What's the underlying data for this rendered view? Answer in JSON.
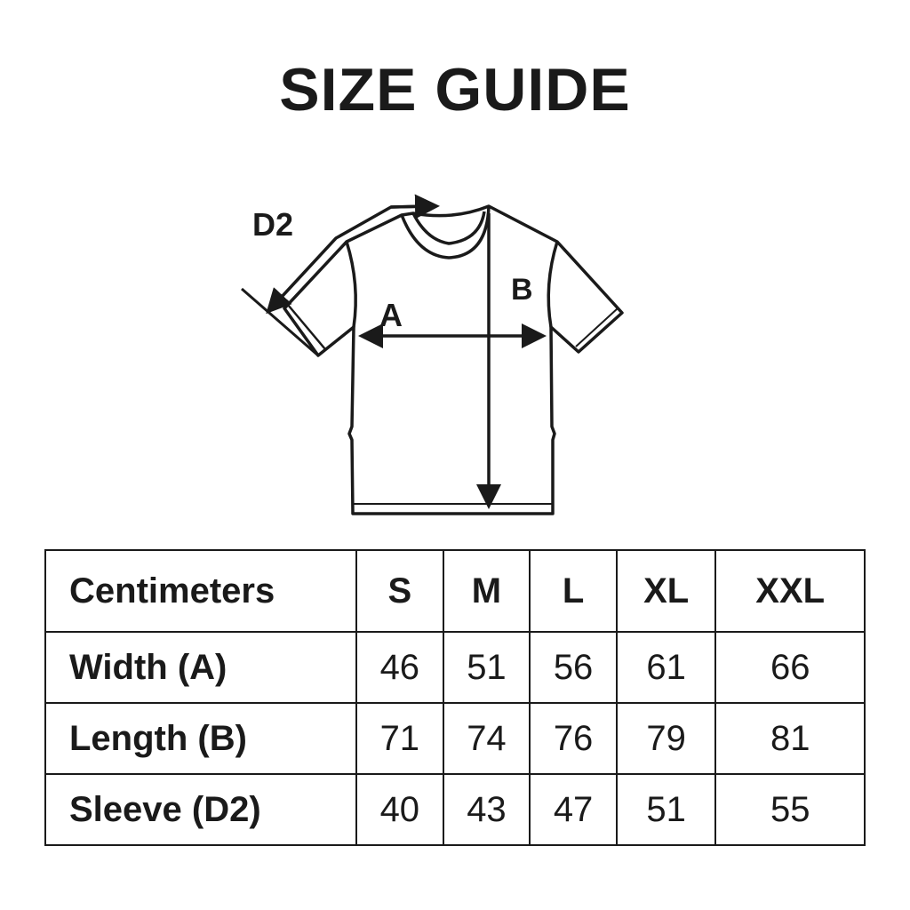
{
  "title": "SIZE GUIDE",
  "diagram": {
    "labels": {
      "sleeve": "D2",
      "width": "A",
      "length": "B"
    }
  },
  "table": {
    "header": [
      "Centimeters",
      "S",
      "M",
      "L",
      "XL",
      "XXL"
    ],
    "rows": [
      {
        "label": "Width (A)",
        "values": [
          "46",
          "51",
          "56",
          "61",
          "66"
        ]
      },
      {
        "label": "Length (B)",
        "values": [
          "71",
          "74",
          "76",
          "79",
          "81"
        ]
      },
      {
        "label": "Sleeve (D2)",
        "values": [
          "40",
          "43",
          "47",
          "51",
          "55"
        ]
      }
    ]
  }
}
